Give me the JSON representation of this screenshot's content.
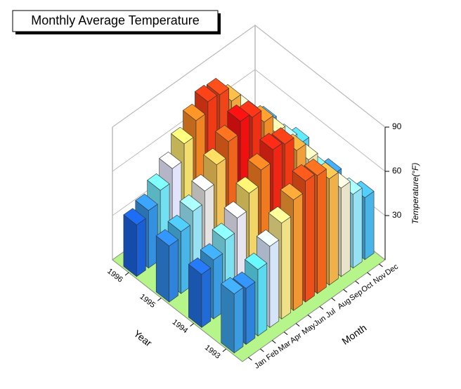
{
  "chart_data": {
    "type": "bar3d",
    "title": "Monthly Average Temperature",
    "x_label": "Month",
    "y_label": "Year",
    "z_label": "Temperature(°F)",
    "categories": [
      "Jan",
      "Feb",
      "Mar",
      "Apr",
      "May",
      "Jun",
      "Jul",
      "Aug",
      "Sep",
      "Oct",
      "Nov",
      "Dec"
    ],
    "series": [
      {
        "name": "1993",
        "values": [
          40,
          38,
          45,
          55,
          65,
          75,
          82,
          80,
          72,
          60,
          50,
          42
        ]
      },
      {
        "name": "1994",
        "values": [
          36,
          40,
          48,
          57,
          68,
          78,
          86,
          84,
          74,
          62,
          48,
          40
        ]
      },
      {
        "name": "1995",
        "values": [
          38,
          42,
          50,
          58,
          70,
          80,
          88,
          85,
          76,
          63,
          52,
          44
        ]
      },
      {
        "name": "1996",
        "values": [
          35,
          39,
          47,
          56,
          67,
          77,
          84,
          83,
          73,
          61,
          49,
          41
        ]
      }
    ],
    "zlim": [
      0,
      90
    ],
    "zticks": [
      30,
      60,
      90
    ],
    "colormap": [
      "#1a5fd6",
      "#5fe0f0",
      "#e4e4fa",
      "#f2e070",
      "#f08020",
      "#f01010"
    ]
  }
}
